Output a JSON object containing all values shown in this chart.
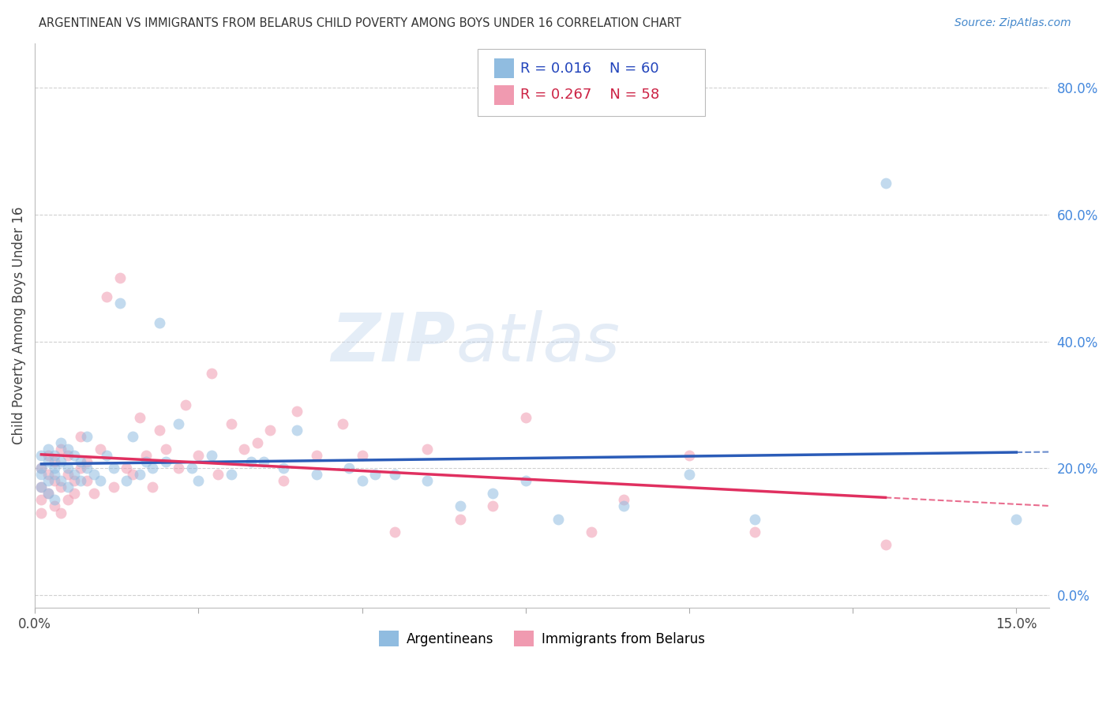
{
  "title": "ARGENTINEAN VS IMMIGRANTS FROM BELARUS CHILD POVERTY AMONG BOYS UNDER 16 CORRELATION CHART",
  "source": "Source: ZipAtlas.com",
  "ylabel": "Child Poverty Among Boys Under 16",
  "watermark": "ZIPatlas",
  "bg_color": "#ffffff",
  "grid_color": "#d0d0d0",
  "scatter_blue_color": "#90bce0",
  "scatter_pink_color": "#f09ab0",
  "trend_blue_color": "#2b5cb8",
  "trend_pink_color": "#e03060",
  "scatter_alpha": 0.55,
  "scatter_size": 100,
  "xlim": [
    0.0,
    0.155
  ],
  "ylim": [
    -0.02,
    0.87
  ],
  "xticks": [
    0.0,
    0.025,
    0.05,
    0.075,
    0.1,
    0.125,
    0.15
  ],
  "yticks_right": [
    0.0,
    0.2,
    0.4,
    0.6,
    0.8
  ],
  "ytick_labels_right": [
    "0.0%",
    "20.0%",
    "40.0%",
    "60.0%",
    "80.0%"
  ],
  "R_blue": "0.016",
  "N_blue": "60",
  "R_pink": "0.267",
  "N_pink": "58",
  "argentineans_x": [
    0.001,
    0.001,
    0.001,
    0.001,
    0.002,
    0.002,
    0.002,
    0.002,
    0.003,
    0.003,
    0.003,
    0.003,
    0.004,
    0.004,
    0.004,
    0.005,
    0.005,
    0.005,
    0.006,
    0.006,
    0.007,
    0.007,
    0.008,
    0.008,
    0.009,
    0.01,
    0.011,
    0.012,
    0.013,
    0.014,
    0.015,
    0.016,
    0.017,
    0.018,
    0.019,
    0.02,
    0.022,
    0.024,
    0.025,
    0.027,
    0.03,
    0.033,
    0.035,
    0.038,
    0.04,
    0.043,
    0.048,
    0.05,
    0.052,
    0.055,
    0.06,
    0.065,
    0.07,
    0.075,
    0.08,
    0.09,
    0.1,
    0.11,
    0.13,
    0.15
  ],
  "argentineans_y": [
    0.2,
    0.22,
    0.19,
    0.17,
    0.21,
    0.18,
    0.23,
    0.16,
    0.2,
    0.19,
    0.22,
    0.15,
    0.18,
    0.21,
    0.24,
    0.2,
    0.17,
    0.23,
    0.19,
    0.22,
    0.21,
    0.18,
    0.2,
    0.25,
    0.19,
    0.18,
    0.22,
    0.2,
    0.46,
    0.18,
    0.25,
    0.19,
    0.21,
    0.2,
    0.43,
    0.21,
    0.27,
    0.2,
    0.18,
    0.22,
    0.19,
    0.21,
    0.21,
    0.2,
    0.26,
    0.19,
    0.2,
    0.18,
    0.19,
    0.19,
    0.18,
    0.14,
    0.16,
    0.18,
    0.12,
    0.14,
    0.19,
    0.12,
    0.65,
    0.12
  ],
  "belarus_x": [
    0.001,
    0.001,
    0.001,
    0.001,
    0.002,
    0.002,
    0.002,
    0.003,
    0.003,
    0.003,
    0.004,
    0.004,
    0.004,
    0.005,
    0.005,
    0.005,
    0.006,
    0.006,
    0.007,
    0.007,
    0.008,
    0.008,
    0.009,
    0.01,
    0.011,
    0.012,
    0.013,
    0.014,
    0.015,
    0.016,
    0.017,
    0.018,
    0.019,
    0.02,
    0.022,
    0.023,
    0.025,
    0.027,
    0.028,
    0.03,
    0.032,
    0.034,
    0.036,
    0.038,
    0.04,
    0.043,
    0.047,
    0.05,
    0.055,
    0.06,
    0.065,
    0.07,
    0.075,
    0.085,
    0.09,
    0.1,
    0.11,
    0.13
  ],
  "belarus_y": [
    0.2,
    0.17,
    0.15,
    0.13,
    0.19,
    0.16,
    0.22,
    0.18,
    0.14,
    0.21,
    0.17,
    0.23,
    0.13,
    0.19,
    0.15,
    0.22,
    0.18,
    0.16,
    0.2,
    0.25,
    0.18,
    0.21,
    0.16,
    0.23,
    0.47,
    0.17,
    0.5,
    0.2,
    0.19,
    0.28,
    0.22,
    0.17,
    0.26,
    0.23,
    0.2,
    0.3,
    0.22,
    0.35,
    0.19,
    0.27,
    0.23,
    0.24,
    0.26,
    0.18,
    0.29,
    0.22,
    0.27,
    0.22,
    0.1,
    0.23,
    0.12,
    0.14,
    0.28,
    0.1,
    0.15,
    0.22,
    0.1,
    0.08
  ]
}
